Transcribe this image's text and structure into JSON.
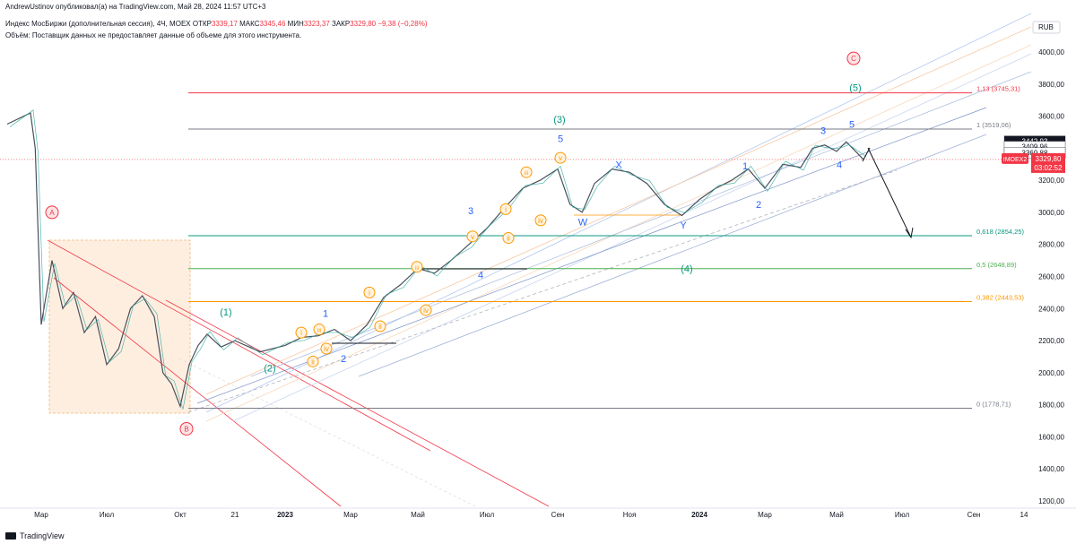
{
  "publisher": "AndrewUstinov опубликовал(а) на TradingView.com, Май 28, 2024 11:57 UTC+3",
  "header": {
    "symbol": "Индекс МосБиржи (дополнительная сессия), 4Ч, MOEX",
    "open_label": "ОТКР",
    "open": "3339,17",
    "high_label": "МАКС",
    "high": "3345,46",
    "low_label": "МИН",
    "low": "3323,37",
    "close_label": "ЗАКР",
    "close": "3329,80",
    "change": "−9,38 (−0,28%)",
    "volume_note": "Объём: Поставщик данных не предоставляет данные об объеме для этого инструмента."
  },
  "currency": "RUB",
  "footer": {
    "brand": "TradingView"
  },
  "chart_data": {
    "type": "line",
    "x_ticks": [
      "Мар",
      "Июл",
      "Окт",
      "21",
      "2023",
      "Мар",
      "Май",
      "Июл",
      "Сен",
      "Ноя",
      "2024",
      "Мар",
      "Май",
      "Июл",
      "Сен",
      "14"
    ],
    "y_ticks": [
      "4000,00",
      "3800,00",
      "3600,00",
      "3400,00",
      "3200,00",
      "3000,00",
      "2800,00",
      "2600,00",
      "2400,00",
      "2200,00",
      "2000,00",
      "1800,00",
      "1600,00",
      "1400,00",
      "1200,00"
    ],
    "ylim": [
      1200,
      4000
    ],
    "price_series": [
      {
        "x": "Фев 2022",
        "y": 3550
      },
      {
        "x": "",
        "y": 3620
      },
      {
        "x": "",
        "y": 3400
      },
      {
        "x": "Мар 2022",
        "y": 2300
      },
      {
        "x": "",
        "y": 2700
      },
      {
        "x": "",
        "y": 2400
      },
      {
        "x": "",
        "y": 2500
      },
      {
        "x": "Май 2022",
        "y": 2250
      },
      {
        "x": "",
        "y": 2350
      },
      {
        "x": "Июл 2022",
        "y": 2050
      },
      {
        "x": "",
        "y": 2150
      },
      {
        "x": "",
        "y": 2400
      },
      {
        "x": "",
        "y": 2480
      },
      {
        "x": "Сен 2022",
        "y": 2350
      },
      {
        "x": "",
        "y": 2000
      },
      {
        "x": "",
        "y": 1930
      },
      {
        "x": "Окт 2022",
        "y": 1790
      },
      {
        "x": "",
        "y": 2050
      },
      {
        "x": "",
        "y": 2170
      },
      {
        "x": "Ноя 2022",
        "y": 2240
      },
      {
        "x": "",
        "y": 2160
      },
      {
        "x": "Дек 2022",
        "y": 2200
      },
      {
        "x": "",
        "y": 2130
      },
      {
        "x": "2023",
        "y": 2170
      },
      {
        "x": "",
        "y": 2220
      },
      {
        "x": "Фев 2023",
        "y": 2230
      },
      {
        "x": "",
        "y": 2270
      },
      {
        "x": "Мар 2023",
        "y": 2200
      },
      {
        "x": "",
        "y": 2300
      },
      {
        "x": "Апр 2023",
        "y": 2470
      },
      {
        "x": "",
        "y": 2550
      },
      {
        "x": "Май 2023",
        "y": 2650
      },
      {
        "x": "",
        "y": 2620
      },
      {
        "x": "Июн 2023",
        "y": 2700
      },
      {
        "x": "",
        "y": 2800
      },
      {
        "x": "Июл 2023",
        "y": 2900
      },
      {
        "x": "",
        "y": 3030
      },
      {
        "x": "Авг 2023",
        "y": 3150
      },
      {
        "x": "",
        "y": 3200
      },
      {
        "x": "Сен 2023",
        "y": 3270
      },
      {
        "x": "",
        "y": 3050
      },
      {
        "x": "",
        "y": 3000
      },
      {
        "x": "Окт 2023",
        "y": 3180
      },
      {
        "x": "",
        "y": 3270
      },
      {
        "x": "Ноя 2023",
        "y": 3250
      },
      {
        "x": "",
        "y": 3180
      },
      {
        "x": "Дек 2023",
        "y": 3050
      },
      {
        "x": "",
        "y": 2980
      },
      {
        "x": "2024",
        "y": 3080
      },
      {
        "x": "",
        "y": 3150
      },
      {
        "x": "Фев 2024",
        "y": 3200
      },
      {
        "x": "",
        "y": 3270
      },
      {
        "x": "Мар 2024",
        "y": 3150
      },
      {
        "x": "",
        "y": 3300
      },
      {
        "x": "Апр 2024",
        "y": 3280
      },
      {
        "x": "",
        "y": 3400
      },
      {
        "x": "",
        "y": 3420
      },
      {
        "x": "Май 2024",
        "y": 3380
      },
      {
        "x": "",
        "y": 3440
      },
      {
        "x": "",
        "y": 3330
      }
    ],
    "fib_levels": [
      {
        "label": "1,13 (3745,31)",
        "value": 3745.31,
        "color": "#f23645"
      },
      {
        "label": "1 (3519,06)",
        "value": 3519.06,
        "color": "#787b86"
      },
      {
        "label": "0,618 (2854,25)",
        "value": 2854.25,
        "color": "#089981"
      },
      {
        "label": "0,5 (2648,89)",
        "value": 2648.89,
        "color": "#4caf50"
      },
      {
        "label": "0,382 (2443,53)",
        "value": 2443.53,
        "color": "#ff9800"
      },
      {
        "label": "0 (1778,71)",
        "value": 1778.71,
        "color": "#787b86"
      }
    ],
    "price_tags": [
      {
        "label": "3442,93",
        "value": 3442.93,
        "bg": "#131722"
      },
      {
        "label": "3409,96",
        "value": 3409.96,
        "bg": "#ffffff"
      },
      {
        "label": "3370,16",
        "value": 3370.16,
        "bg": "#ffffff"
      },
      {
        "label": "3369,88",
        "value": 3369.88,
        "bg": "#ffffff"
      }
    ],
    "current": {
      "symbol": "IMOEX2",
      "price": "3329,80",
      "time": "03:02:52",
      "value": 3329.8
    },
    "wave_labels": [
      {
        "text": "A",
        "x": "Мар 2022",
        "y": 3000,
        "style": "circle-red"
      },
      {
        "text": "B",
        "x": "Окт 2022",
        "y": 1650,
        "style": "circle-red"
      },
      {
        "text": "C",
        "x": "Май 2024",
        "y": 3960,
        "style": "circle-red"
      },
      {
        "text": "(1)",
        "x": "Ноя 2022",
        "y": 2380,
        "style": "green"
      },
      {
        "text": "(2)",
        "x": "Дек 2022",
        "y": 2030,
        "style": "green"
      },
      {
        "text": "(3)",
        "x": "Сен 2023",
        "y": 3580,
        "style": "green"
      },
      {
        "text": "(4)",
        "x": "Фев 2024",
        "y": 2650,
        "style": "green"
      },
      {
        "text": "(5)",
        "x": "Май 2024",
        "y": 3780,
        "style": "green"
      },
      {
        "text": "1",
        "x": "Мар 2023",
        "y": 2370,
        "style": "blue"
      },
      {
        "text": "2",
        "x": "Мар 2023",
        "y": 2090,
        "style": "blue"
      },
      {
        "text": "3",
        "x": "Июл 2023",
        "y": 3010,
        "style": "blue"
      },
      {
        "text": "4",
        "x": "Июл 2023",
        "y": 2610,
        "style": "blue"
      },
      {
        "text": "5",
        "x": "Сен 2023",
        "y": 3460,
        "style": "blue"
      },
      {
        "text": "X",
        "x": "Ноя 2023",
        "y": 3300,
        "style": "blue"
      },
      {
        "text": "W",
        "x": "Окт 2023",
        "y": 2940,
        "style": "blue"
      },
      {
        "text": "Y",
        "x": "Дек 2023",
        "y": 2920,
        "style": "blue"
      },
      {
        "text": "1",
        "x": "Фев 2024",
        "y": 3290,
        "style": "blue"
      },
      {
        "text": "2",
        "x": "Мар 2024",
        "y": 3050,
        "style": "blue"
      },
      {
        "text": "3",
        "x": "Май 2024",
        "y": 3510,
        "style": "blue"
      },
      {
        "text": "4",
        "x": "Май 2024",
        "y": 3300,
        "style": "blue"
      },
      {
        "text": "5",
        "x": "Май 2024",
        "y": 3550,
        "style": "blue"
      },
      {
        "text": "i",
        "x": "Фев 2023",
        "y": 2250,
        "style": "circle-orange"
      },
      {
        "text": "ii",
        "x": "Фев 2023",
        "y": 2070,
        "style": "circle-orange"
      },
      {
        "text": "iii",
        "x": "Фев 2023",
        "y": 2270,
        "style": "circle-orange"
      },
      {
        "text": "iv",
        "x": "Мар 2023",
        "y": 2150,
        "style": "circle-orange"
      },
      {
        "text": "i",
        "x": "Апр 2023",
        "y": 2500,
        "style": "circle-orange"
      },
      {
        "text": "ii",
        "x": "Апр 2023",
        "y": 2290,
        "style": "circle-orange"
      },
      {
        "text": "iii",
        "x": "Май 2023",
        "y": 2660,
        "style": "circle-orange"
      },
      {
        "text": "iv",
        "x": "Май 2023",
        "y": 2390,
        "style": "circle-orange"
      },
      {
        "text": "v",
        "x": "Июн 2023",
        "y": 2850,
        "style": "circle-orange"
      },
      {
        "text": "i",
        "x": "Июл 2023",
        "y": 3020,
        "style": "circle-orange"
      },
      {
        "text": "ii",
        "x": "Июл 2023",
        "y": 2840,
        "style": "circle-orange"
      },
      {
        "text": "iii",
        "x": "Авг 2023",
        "y": 3250,
        "style": "circle-orange"
      },
      {
        "text": "iv",
        "x": "Авг 2023",
        "y": 2950,
        "style": "circle-orange"
      },
      {
        "text": "v",
        "x": "Сен 2023",
        "y": 3340,
        "style": "circle-orange"
      }
    ]
  }
}
